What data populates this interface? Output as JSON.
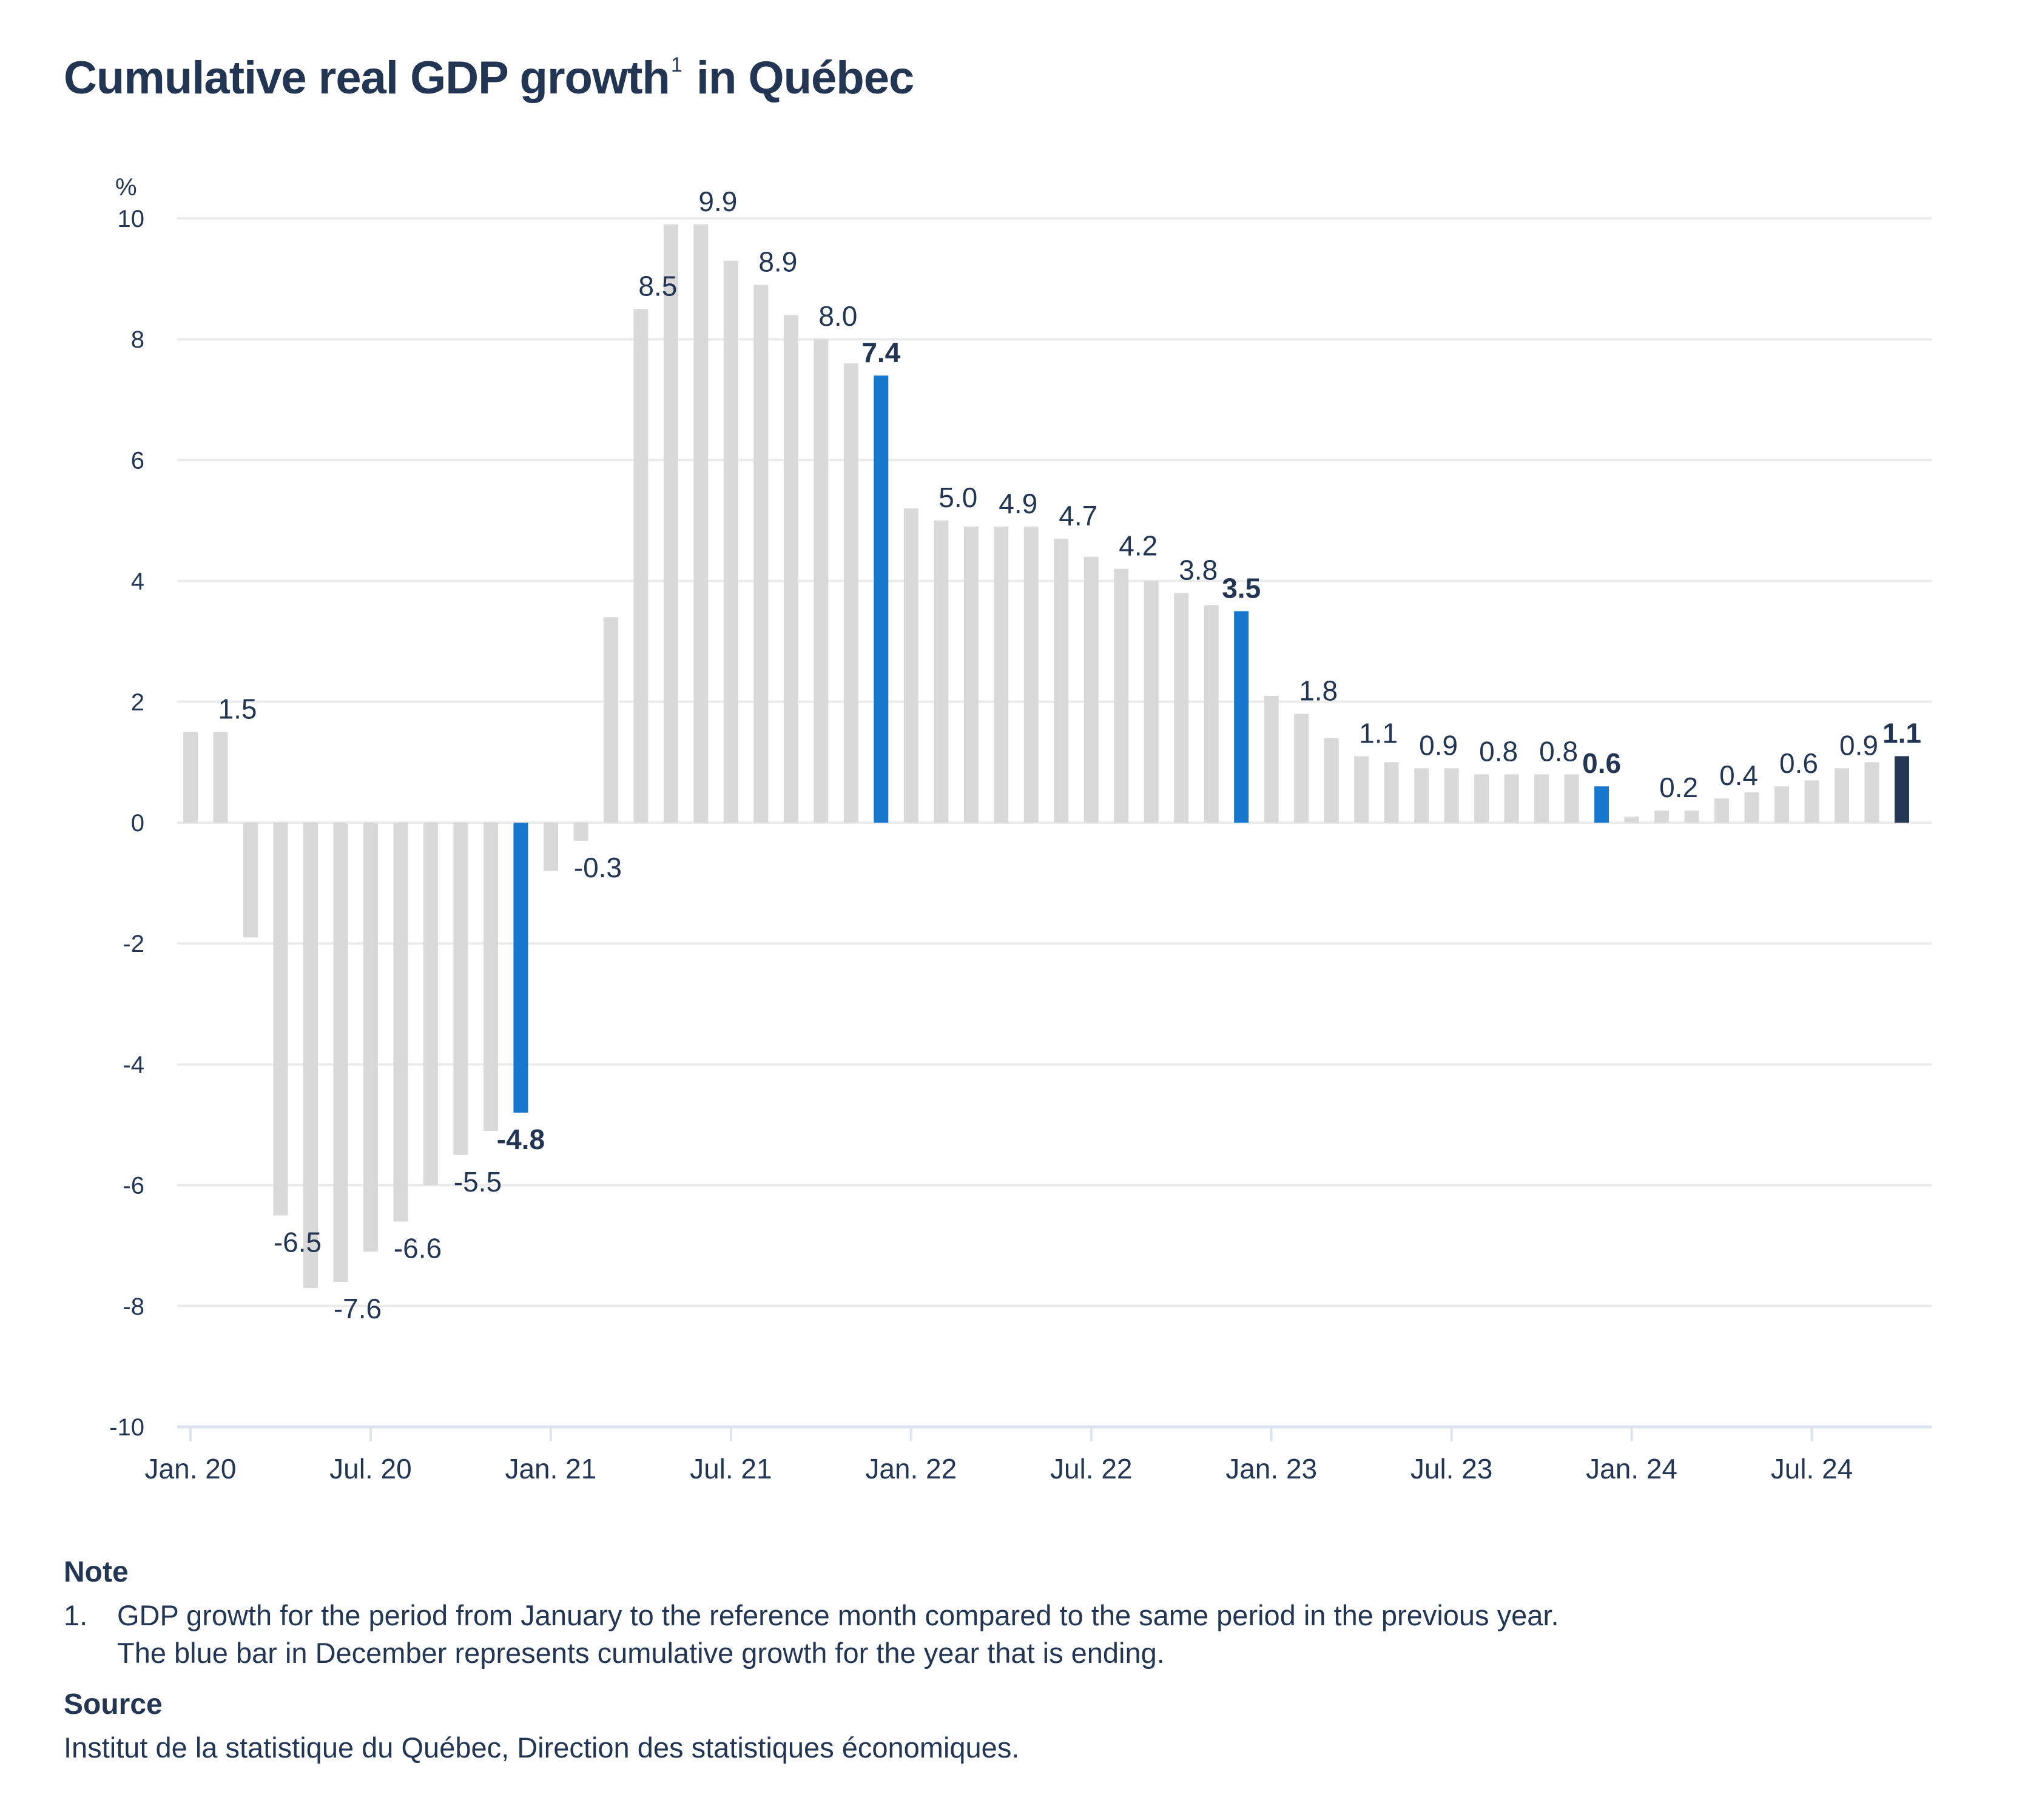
{
  "title": {
    "text": "Cumulative real GDP growth",
    "footnote_ref": "1",
    "suffix": " in Québec"
  },
  "colors": {
    "default_bar": "#d9d9d9",
    "december_bar": "#1777cc",
    "latest_bar": "#243855",
    "text": "#223654",
    "grid": "#ebebeb",
    "axis": "#dde3ee"
  },
  "chart_data": {
    "type": "bar",
    "title": "Cumulative real GDP growth in Québec",
    "xlabel": "",
    "ylabel": "%",
    "ylim": [
      -10,
      10
    ],
    "yticks": [
      10,
      8,
      6,
      4,
      2,
      0,
      -2,
      -4,
      -6,
      -8,
      -10
    ],
    "grid": true,
    "legend": "none",
    "xtick_labels": [
      "Jan. 20",
      "Jul. 20",
      "Jan. 21",
      "Jul. 21",
      "Jan. 22",
      "Jul. 22",
      "Jan. 23",
      "Jul. 23",
      "Jan. 24",
      "Jul. 24"
    ],
    "categories": [
      "Jan. 20",
      "Feb. 20",
      "Mar. 20",
      "Apr. 20",
      "May 20",
      "Jun. 20",
      "Jul. 20",
      "Aug. 20",
      "Sep. 20",
      "Oct. 20",
      "Nov. 20",
      "Dec. 20",
      "Jan. 21",
      "Feb. 21",
      "Mar. 21",
      "Apr. 21",
      "May 21",
      "Jun. 21",
      "Jul. 21",
      "Aug. 21",
      "Sep. 21",
      "Oct. 21",
      "Nov. 21",
      "Dec. 21",
      "Jan. 22",
      "Feb. 22",
      "Mar. 22",
      "Apr. 22",
      "May 22",
      "Jun. 22",
      "Jul. 22",
      "Aug. 22",
      "Sep. 22",
      "Oct. 22",
      "Nov. 22",
      "Dec. 22",
      "Jan. 23",
      "Feb. 23",
      "Mar. 23",
      "Apr. 23",
      "May 23",
      "Jun. 23",
      "Jul. 23",
      "Aug. 23",
      "Sep. 23",
      "Oct. 23",
      "Nov. 23",
      "Dec. 23",
      "Jan. 24",
      "Feb. 24",
      "Mar. 24",
      "Apr. 24",
      "May 24",
      "Jun. 24",
      "Jul. 24",
      "Aug. 24",
      "Sep. 24",
      "Oct. 24"
    ],
    "values": [
      1.5,
      1.5,
      -1.9,
      -6.5,
      -7.7,
      -7.6,
      -7.1,
      -6.6,
      -6.0,
      -5.5,
      -5.1,
      -4.8,
      -0.8,
      -0.3,
      3.4,
      8.5,
      9.9,
      9.9,
      9.3,
      8.9,
      8.4,
      8.0,
      7.6,
      7.4,
      5.2,
      5.0,
      4.9,
      4.9,
      4.9,
      4.7,
      4.4,
      4.2,
      4.0,
      3.8,
      3.6,
      3.5,
      2.1,
      1.8,
      1.4,
      1.1,
      1.0,
      0.9,
      0.9,
      0.8,
      0.8,
      0.8,
      0.8,
      0.6,
      0.1,
      0.2,
      0.2,
      0.4,
      0.5,
      0.6,
      0.7,
      0.9,
      1.0,
      1.1
    ],
    "highlight": {
      "december": [
        "Dec. 20",
        "Dec. 21",
        "Dec. 22",
        "Dec. 23"
      ],
      "latest": [
        "Oct. 24"
      ]
    },
    "data_labels": [
      {
        "category": "Feb. 20",
        "text": "1.5",
        "bold": false
      },
      {
        "category": "Apr. 20",
        "text": "-6.5",
        "bold": false
      },
      {
        "category": "Jun. 20",
        "text": "-7.6",
        "bold": false
      },
      {
        "category": "Aug. 20",
        "text": "-6.6",
        "bold": false
      },
      {
        "category": "Oct. 20",
        "text": "-5.5",
        "bold": false
      },
      {
        "category": "Dec. 20",
        "text": "-4.8",
        "bold": true
      },
      {
        "category": "Feb. 21",
        "text": "-0.3",
        "bold": false
      },
      {
        "category": "Apr. 21",
        "text": "8.5",
        "bold": false
      },
      {
        "category": "Jun. 21",
        "text": "9.9",
        "bold": false
      },
      {
        "category": "Aug. 21",
        "text": "8.9",
        "bold": false
      },
      {
        "category": "Oct. 21",
        "text": "8.0",
        "bold": false
      },
      {
        "category": "Dec. 21",
        "text": "7.4",
        "bold": true
      },
      {
        "category": "Feb. 22",
        "text": "5.0",
        "bold": false
      },
      {
        "category": "Apr. 22",
        "text": "4.9",
        "bold": false
      },
      {
        "category": "Jun. 22",
        "text": "4.7",
        "bold": false
      },
      {
        "category": "Aug. 22",
        "text": "4.2",
        "bold": false
      },
      {
        "category": "Oct. 22",
        "text": "3.8",
        "bold": false
      },
      {
        "category": "Dec. 22",
        "text": "3.5",
        "bold": true
      },
      {
        "category": "Feb. 23",
        "text": "1.8",
        "bold": false
      },
      {
        "category": "Apr. 23",
        "text": "1.1",
        "bold": false
      },
      {
        "category": "Jun. 23",
        "text": "0.9",
        "bold": false
      },
      {
        "category": "Aug. 23",
        "text": "0.8",
        "bold": false
      },
      {
        "category": "Oct. 23",
        "text": "0.8",
        "bold": false
      },
      {
        "category": "Dec. 23",
        "text": "0.6",
        "bold": true
      },
      {
        "category": "Feb. 24",
        "text": "0.2",
        "bold": false
      },
      {
        "category": "Apr. 24",
        "text": "0.4",
        "bold": false
      },
      {
        "category": "Jun. 24",
        "text": "0.6",
        "bold": false
      },
      {
        "category": "Aug. 24",
        "text": "0.9",
        "bold": false
      },
      {
        "category": "Oct. 24",
        "text": "1.1",
        "bold": true
      }
    ]
  },
  "notes": {
    "heading": "Note",
    "items": [
      {
        "number": "1.",
        "lines": [
          "GDP growth for the period from January to the reference month compared to the same period in the previous year.",
          "The blue bar in December represents cumulative growth for the year that is ending."
        ]
      }
    ]
  },
  "source": {
    "heading": "Source",
    "text": "Institut de la statistique du Québec, Direction des statistiques économiques."
  }
}
